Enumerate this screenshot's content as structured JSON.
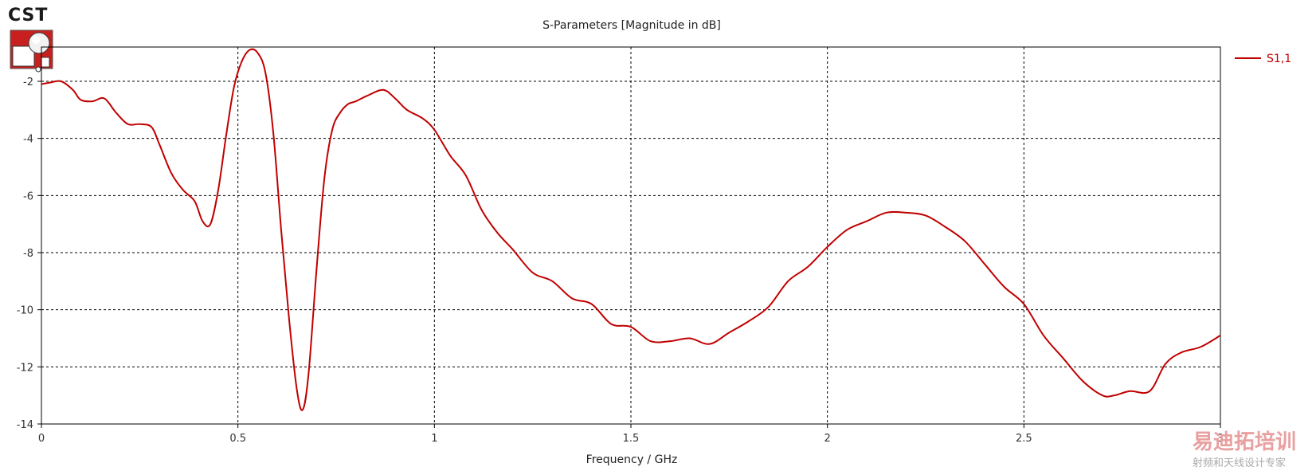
{
  "logo": {
    "text": "CST"
  },
  "watermark": {
    "line1": "易迪拓培训",
    "line2": "射频和天线设计专家"
  },
  "colors": {
    "series": "#c00000",
    "grid": "#000000",
    "frame": "#000000",
    "watermark": "#e8a0a0"
  },
  "chart_data": {
    "type": "line",
    "title": "S-Parameters [Magnitude in dB]",
    "xlabel": "Frequency / GHz",
    "ylabel": "",
    "xlim": [
      0,
      3
    ],
    "ylim": [
      -14,
      -0.8
    ],
    "xticks": [
      0,
      0.5,
      1,
      1.5,
      2,
      2.5,
      3
    ],
    "xtick_labels": [
      "0",
      "0.5",
      "1",
      "1.5",
      "2",
      "2.5",
      "3"
    ],
    "yticks": [
      -14,
      -12,
      -10,
      -8,
      -6,
      -4,
      -2
    ],
    "ytick_labels": [
      "-14",
      "-12",
      "-10",
      "-8",
      "-6",
      "-4",
      "-2"
    ],
    "grid": true,
    "legend_position": "top-right",
    "series": [
      {
        "name": "S1,1",
        "x": [
          0,
          0.02,
          0.05,
          0.08,
          0.1,
          0.13,
          0.16,
          0.19,
          0.22,
          0.25,
          0.28,
          0.3,
          0.33,
          0.36,
          0.39,
          0.41,
          0.43,
          0.45,
          0.47,
          0.49,
          0.51,
          0.53,
          0.55,
          0.57,
          0.59,
          0.61,
          0.63,
          0.65,
          0.665,
          0.68,
          0.7,
          0.72,
          0.74,
          0.76,
          0.78,
          0.8,
          0.83,
          0.87,
          0.9,
          0.93,
          0.97,
          1.0,
          1.04,
          1.08,
          1.12,
          1.16,
          1.2,
          1.25,
          1.3,
          1.35,
          1.4,
          1.45,
          1.5,
          1.55,
          1.6,
          1.65,
          1.7,
          1.75,
          1.8,
          1.85,
          1.9,
          1.95,
          2.0,
          2.05,
          2.1,
          2.15,
          2.2,
          2.25,
          2.3,
          2.35,
          2.4,
          2.45,
          2.5,
          2.55,
          2.6,
          2.65,
          2.7,
          2.73,
          2.77,
          2.82,
          2.86,
          2.9,
          2.95,
          3.0
        ],
        "values": [
          -2.1,
          -2.05,
          -2.0,
          -2.3,
          -2.65,
          -2.7,
          -2.6,
          -3.1,
          -3.5,
          -3.5,
          -3.6,
          -4.2,
          -5.2,
          -5.8,
          -6.2,
          -6.9,
          -7.0,
          -5.8,
          -3.9,
          -2.2,
          -1.3,
          -0.9,
          -1.0,
          -1.7,
          -3.8,
          -7.2,
          -10.3,
          -12.8,
          -13.5,
          -12.2,
          -8.6,
          -5.4,
          -3.7,
          -3.1,
          -2.8,
          -2.7,
          -2.5,
          -2.3,
          -2.6,
          -3.0,
          -3.3,
          -3.7,
          -4.6,
          -5.3,
          -6.5,
          -7.3,
          -7.9,
          -8.7,
          -9.0,
          -9.6,
          -9.8,
          -10.5,
          -10.6,
          -11.1,
          -11.1,
          -11.0,
          -11.2,
          -10.8,
          -10.4,
          -9.9,
          -9.0,
          -8.5,
          -7.8,
          -7.2,
          -6.9,
          -6.6,
          -6.6,
          -6.7,
          -7.1,
          -7.6,
          -8.4,
          -9.2,
          -9.8,
          -10.9,
          -11.7,
          -12.5,
          -13.0,
          -13.0,
          -12.85,
          -12.85,
          -11.9,
          -11.5,
          -11.3,
          -10.9
        ]
      }
    ]
  }
}
